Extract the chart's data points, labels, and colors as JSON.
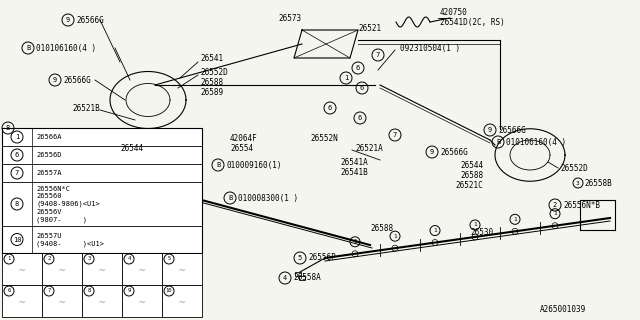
{
  "bg_color": "#f5f5f0",
  "diagram_code": "A265001039",
  "table_rows": [
    [
      "1",
      "26566A"
    ],
    [
      "6",
      "26556D"
    ],
    [
      "7",
      "26557A"
    ],
    [
      "8",
      "26556N*C\n26556O\n(9408-9806)<U1>\n26556V\n(9807-     )"
    ],
    [
      "10",
      "26557U\n(9408-     )<U1>"
    ]
  ]
}
